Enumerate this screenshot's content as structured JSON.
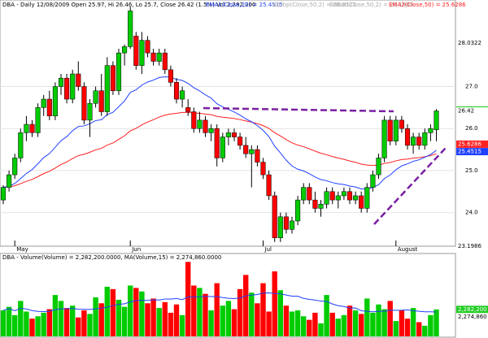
{
  "header": {
    "title": "DBA - Daily 12/08/2009 Open 25.97, Hi 26.46, Lo 25.7, Close 26.42 (1.5%) Vol 2,282,200",
    "ema1": "EMA1(Close,20) = 25.4515",
    "bbtop": "BBTop(Close,50,2) = 28.0322",
    "bbbot": "BBBot(Close,50,2) = 23.1986",
    "ema2": "EMA2(Close,50) = 25.6286"
  },
  "chart_data": [
    {
      "type": "candlestick",
      "categories": [
        null,
        null,
        "May",
        null,
        null,
        null,
        null,
        null,
        null,
        null,
        null,
        null,
        null,
        null,
        null,
        null,
        null,
        null,
        null,
        null,
        null,
        null,
        "Jun",
        null,
        null,
        null,
        null,
        null,
        null,
        null,
        null,
        null,
        null,
        null,
        null,
        null,
        null,
        null,
        null,
        null,
        null,
        null,
        null,
        null,
        null,
        "Jul",
        null,
        null,
        null,
        null,
        null,
        null,
        null,
        null,
        null,
        null,
        null,
        null,
        null,
        null,
        null,
        null,
        null,
        null,
        null,
        null,
        null,
        null,
        "August",
        null,
        null,
        null,
        null,
        null,
        null,
        null
      ],
      "open": [
        24.3,
        24.6,
        24.9,
        25.3,
        25.9,
        26.1,
        25.9,
        26.5,
        26.7,
        26.3,
        27.0,
        27.2,
        26.7,
        27.3,
        27.0,
        26.2,
        26.6,
        26.9,
        26.4,
        27.5,
        26.9,
        27.8,
        27.95,
        28.2,
        27.5,
        28.1,
        27.8,
        27.6,
        27.8,
        27.4,
        27.1,
        26.7,
        26.5,
        26.4,
        26.0,
        26.2,
        25.9,
        26.0,
        25.3,
        25.8,
        25.9,
        25.8,
        25.6,
        25.4,
        25.5,
        25.2,
        24.9,
        24.4,
        23.4,
        23.9,
        23.6,
        23.8,
        24.3,
        24.6,
        24.3,
        24.1,
        24.2,
        24.5,
        24.3,
        24.4,
        24.5,
        24.3,
        24.4,
        24.1,
        24.6,
        24.9,
        25.3,
        26.2,
        25.7,
        26.2,
        26.0,
        25.6,
        25.8,
        25.6,
        25.9,
        25.97
      ],
      "high": [
        24.65,
        25.0,
        25.4,
        26.0,
        26.3,
        26.2,
        26.6,
        26.8,
        26.9,
        27.1,
        27.3,
        27.3,
        27.4,
        27.6,
        27.1,
        26.7,
        27.0,
        27.3,
        27.7,
        27.6,
        27.9,
        28.0,
        28.9,
        28.3,
        28.3,
        28.2,
        27.9,
        27.9,
        27.9,
        27.5,
        27.2,
        27.0,
        26.7,
        26.5,
        26.4,
        26.3,
        26.1,
        26.1,
        25.9,
        26.0,
        26.0,
        25.9,
        25.8,
        25.6,
        25.6,
        25.3,
        25.0,
        24.5,
        24.0,
        24.0,
        23.9,
        24.4,
        24.7,
        24.7,
        24.5,
        24.3,
        24.6,
        24.6,
        24.5,
        24.6,
        24.6,
        24.5,
        24.5,
        24.7,
        25.0,
        25.4,
        26.3,
        26.3,
        26.3,
        26.3,
        26.1,
        25.9,
        25.9,
        26.0,
        26.1,
        26.46
      ],
      "low": [
        24.2,
        24.5,
        24.8,
        25.2,
        25.7,
        25.8,
        25.8,
        26.3,
        26.2,
        26.2,
        26.8,
        26.6,
        26.6,
        26.9,
        26.1,
        25.8,
        26.5,
        26.3,
        26.3,
        26.8,
        26.8,
        27.5,
        27.9,
        27.4,
        27.3,
        27.7,
        27.5,
        27.5,
        27.3,
        27.0,
        26.6,
        26.5,
        26.3,
        25.9,
        25.9,
        25.8,
        25.7,
        25.1,
        25.2,
        25.6,
        25.7,
        25.5,
        25.3,
        24.6,
        25.1,
        24.8,
        24.3,
        23.3,
        23.3,
        23.5,
        23.5,
        23.7,
        24.2,
        24.2,
        24.0,
        23.9,
        24.1,
        24.2,
        24.1,
        24.3,
        24.2,
        24.2,
        24.0,
        24.0,
        24.5,
        24.8,
        25.2,
        25.6,
        25.6,
        25.9,
        25.5,
        25.4,
        25.5,
        25.5,
        25.7,
        25.7
      ],
      "close": [
        24.6,
        24.9,
        25.3,
        25.9,
        26.1,
        25.9,
        26.5,
        26.7,
        26.3,
        27.0,
        27.2,
        26.7,
        27.3,
        27.0,
        26.2,
        26.6,
        26.9,
        26.4,
        27.5,
        26.9,
        27.8,
        27.95,
        28.8,
        27.5,
        28.1,
        27.8,
        27.6,
        27.8,
        27.4,
        27.1,
        26.7,
        26.9,
        26.4,
        26.0,
        26.2,
        25.9,
        26.0,
        25.3,
        25.8,
        25.9,
        25.8,
        25.6,
        25.4,
        25.5,
        25.2,
        24.9,
        24.4,
        23.4,
        23.9,
        23.6,
        23.8,
        24.3,
        24.6,
        24.3,
        24.1,
        24.2,
        24.5,
        24.3,
        24.4,
        24.5,
        24.3,
        24.4,
        24.1,
        24.6,
        24.9,
        25.3,
        26.2,
        25.7,
        26.2,
        26.0,
        25.6,
        25.8,
        25.6,
        25.9,
        26.0,
        26.42
      ],
      "ylim": [
        23.2,
        29.06
      ],
      "yticks": [
        {
          "value": 27,
          "label": "27.0"
        },
        {
          "value": 26,
          "label": "26.0"
        },
        {
          "value": 25,
          "label": "25.0"
        },
        {
          "value": 24,
          "label": "24.0"
        }
      ],
      "price_tags": [
        {
          "value": 28.0322,
          "color": "#ffffff"
        },
        {
          "value": 26.4404,
          "color": "#22cc22"
        },
        {
          "value": 26.42,
          "color": "#ffffff"
        },
        {
          "value": 25.6286,
          "color": "#ff2020"
        },
        {
          "value": 25.4515,
          "color": "#2040ff"
        },
        {
          "value": 23.1986,
          "color": "#ffffff"
        }
      ],
      "up_color": "#00cc00",
      "down_color": "#ff0000"
    },
    {
      "type": "volume",
      "title": "DBA - Volume(Volume) = 2,282,200.0000, MA(Volume,15) = 2,274,860.0000",
      "values": [
        2200000,
        2500000,
        1800000,
        3000000,
        2100000,
        1500000,
        1700000,
        2000000,
        2300000,
        3500000,
        3000000,
        2400000,
        2600000,
        1600000,
        2200000,
        1900000,
        3300000,
        2800000,
        4200000,
        4000000,
        3100000,
        2500000,
        4300000,
        4100000,
        3800000,
        2800000,
        3200000,
        2400000,
        2900000,
        2000000,
        2700000,
        1800000,
        6300000,
        4300000,
        4100000,
        3600000,
        2200000,
        4500000,
        2600000,
        3000000,
        2300000,
        4000000,
        5200000,
        3700000,
        2800000,
        4500000,
        2100000,
        5500000,
        3900000,
        2600000,
        2100000,
        2200000,
        1700000,
        1400000,
        2000000,
        1100000,
        3500000,
        2000000,
        1500000,
        1800000,
        2600000,
        2200000,
        1900000,
        3200000,
        2000000,
        2700000,
        2300000,
        3000000,
        1300000,
        2200000,
        1500000,
        2400000,
        1200000,
        900000,
        1800000,
        2282200
      ],
      "ylim": [
        0,
        6600000
      ],
      "tags": [
        {
          "value": 2282200,
          "label": "2,282,200",
          "color": "#22cc22"
        },
        {
          "value": 2274860,
          "label": "2,274,860",
          "color": "#ffffff"
        }
      ]
    }
  ]
}
